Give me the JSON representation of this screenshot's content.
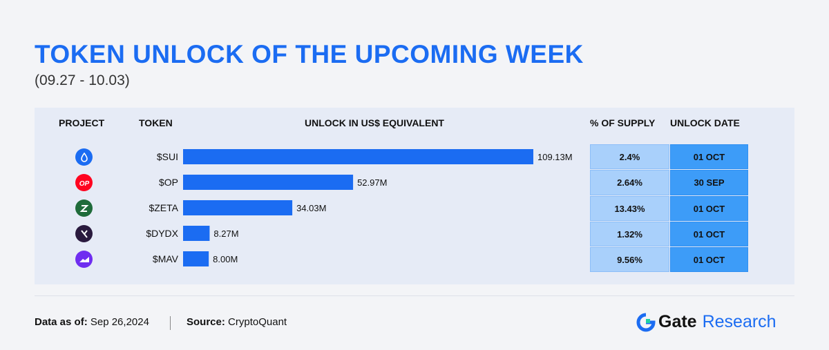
{
  "title": "TOKEN UNLOCK OF THE UPCOMING WEEK",
  "subtitle": "(09.27 - 10.03)",
  "headers": {
    "project": "PROJECT",
    "token": "TOKEN",
    "unlock": "UNLOCK IN US$ EQUIVALENT",
    "supply": "% OF SUPPLY",
    "date": "UNLOCK DATE"
  },
  "colors": {
    "bar": "#1b6cf2",
    "title": "#1b6cf2",
    "supply_cell": "#a9d0fb",
    "date_cell": "#3d9cf8"
  },
  "chart_data": {
    "type": "bar",
    "orientation": "horizontal",
    "categories": [
      "$SUI",
      "$OP",
      "$ZETA",
      "$DYDX",
      "$MAV"
    ],
    "values": [
      109.13,
      52.97,
      34.03,
      8.27,
      8.0
    ],
    "value_labels": [
      "109.13M",
      "52.97M",
      "34.03M",
      "8.27M",
      "8.00M"
    ],
    "unit": "M",
    "xlim": [
      0,
      109.13
    ],
    "grid": false,
    "legend": "none"
  },
  "rows": [
    {
      "token": "$SUI",
      "icon": "sui-icon",
      "icon_color": "#1b6cf2",
      "supply": "2.4%",
      "date": "01 OCT"
    },
    {
      "token": "$OP",
      "icon": "optimism-icon",
      "icon_color": "#ff0420",
      "supply": "2.64%",
      "date": "30 SEP"
    },
    {
      "token": "$ZETA",
      "icon": "zeta-icon",
      "icon_color": "#1f6b3a",
      "supply": "13.43%",
      "date": "01 OCT"
    },
    {
      "token": "$DYDX",
      "icon": "dydx-icon",
      "icon_color": "#2a1a3e",
      "supply": "1.32%",
      "date": "01 OCT"
    },
    {
      "token": "$MAV",
      "icon": "maverick-icon",
      "icon_color": "#6f2df0",
      "supply": "9.56%",
      "date": "01 OCT"
    }
  ],
  "footer": {
    "data_as_of_label": "Data as of:",
    "data_as_of_value": "Sep 26,2024",
    "source_label": "Source:",
    "source_value": "CryptoQuant"
  },
  "brand": {
    "name": "Gate",
    "suffix": "Research"
  }
}
